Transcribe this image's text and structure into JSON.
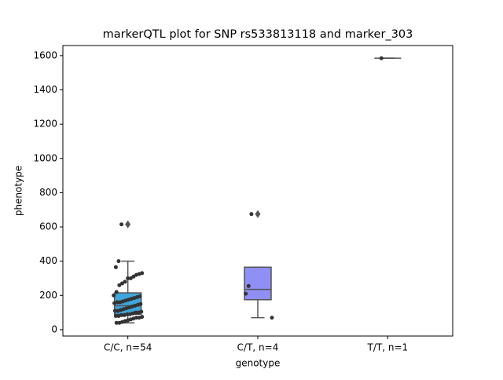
{
  "chart_data": {
    "type": "box",
    "title": "markerQTL plot for SNP rs533813118 and marker_303",
    "xlabel": "genotype",
    "ylabel": "phenotype",
    "categories": [
      "C/C, n=54",
      "C/T, n=4",
      "T/T, n=1"
    ],
    "boxes": [
      {
        "whislo": 40,
        "q1": 90,
        "median": 140,
        "q3": 215,
        "whishi": 400,
        "fliers": [
          615
        ],
        "color": "#3fa5dc"
      },
      {
        "whislo": 70,
        "q1": 175,
        "median": 235,
        "q3": 365,
        "whishi": 365,
        "fliers": [
          675
        ],
        "color": "#8f8ff5"
      },
      {
        "whislo": 1585,
        "q1": 1585,
        "median": 1585,
        "q3": 1585,
        "whishi": 1585,
        "fliers": [],
        "color": "#b08ff0"
      }
    ],
    "points": [
      [
        615,
        400,
        365,
        330,
        325,
        320,
        310,
        300,
        300,
        280,
        270,
        260,
        220,
        200,
        195,
        190,
        185,
        180,
        175,
        170,
        165,
        160,
        160,
        155,
        150,
        145,
        140,
        135,
        130,
        125,
        120,
        115,
        110,
        110,
        105,
        100,
        100,
        95,
        90,
        90,
        85,
        85,
        80,
        80,
        75,
        70,
        70,
        65,
        60,
        55,
        50,
        45,
        40,
        40
      ],
      [
        675,
        255,
        210,
        70
      ],
      [
        1585
      ]
    ],
    "point_color": "#333333",
    "ylim": [
      -37,
      1659
    ],
    "yticks": [
      0,
      200,
      400,
      600,
      800,
      1000,
      1200,
      1400,
      1600
    ]
  }
}
